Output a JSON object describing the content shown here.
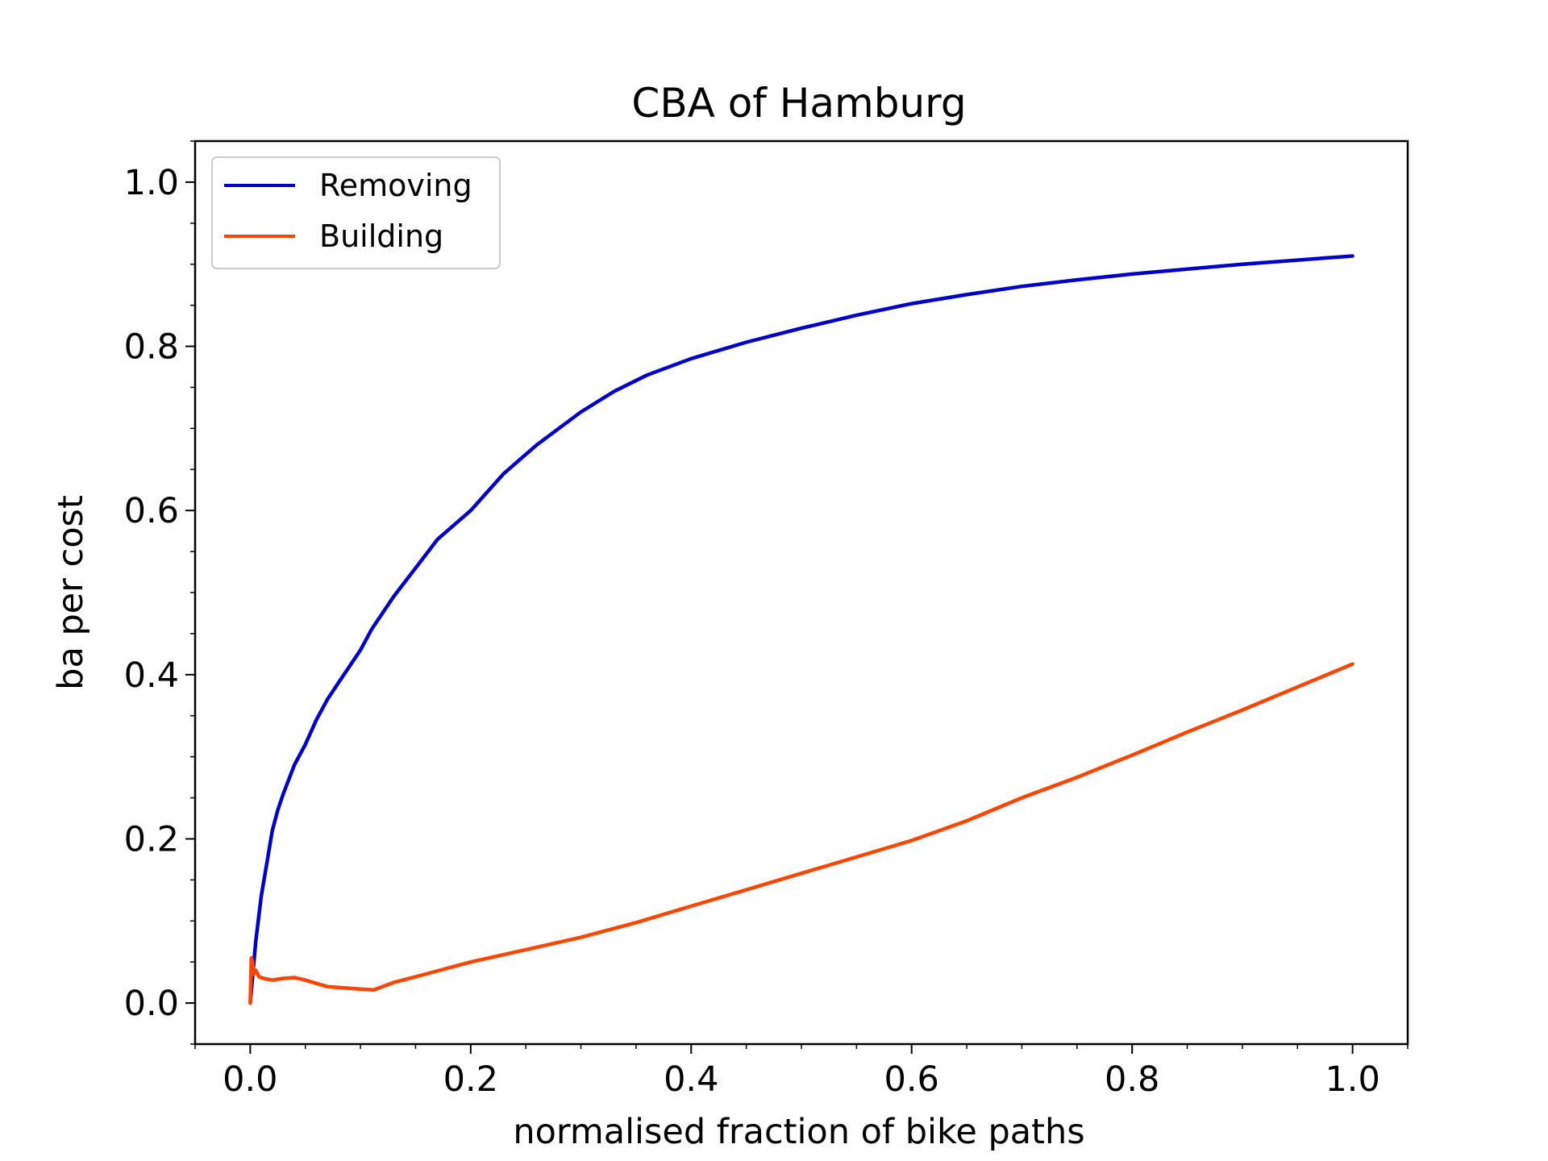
{
  "chart_data": {
    "type": "line",
    "title": "CBA of Hamburg",
    "xlabel": "normalised fraction of bike paths",
    "ylabel": "ba per cost",
    "xlim": [
      -0.05,
      1.05
    ],
    "ylim": [
      -0.05,
      1.05
    ],
    "xticks": [
      0.0,
      0.2,
      0.4,
      0.6,
      0.8,
      1.0
    ],
    "xtick_labels": [
      "0.0",
      "0.2",
      "0.4",
      "0.6",
      "0.8",
      "1.0"
    ],
    "yticks": [
      0.0,
      0.2,
      0.4,
      0.6,
      0.8,
      1.0
    ],
    "ytick_labels": [
      "0.0",
      "0.2",
      "0.4",
      "0.6",
      "0.8",
      "1.0"
    ],
    "grid": false,
    "legend_position": "upper-left",
    "series": [
      {
        "name": "Removing",
        "color": "#0000cc",
        "x": [
          0.0,
          0.002,
          0.005,
          0.01,
          0.015,
          0.02,
          0.025,
          0.03,
          0.04,
          0.05,
          0.06,
          0.07,
          0.08,
          0.09,
          0.1,
          0.11,
          0.12,
          0.13,
          0.15,
          0.17,
          0.2,
          0.23,
          0.26,
          0.3,
          0.33,
          0.36,
          0.4,
          0.45,
          0.5,
          0.55,
          0.6,
          0.65,
          0.7,
          0.75,
          0.8,
          0.85,
          0.9,
          0.95,
          1.0
        ],
        "values": [
          0.0,
          0.03,
          0.075,
          0.13,
          0.17,
          0.21,
          0.235,
          0.255,
          0.29,
          0.315,
          0.345,
          0.37,
          0.39,
          0.41,
          0.43,
          0.455,
          0.475,
          0.495,
          0.53,
          0.565,
          0.6,
          0.645,
          0.68,
          0.72,
          0.745,
          0.765,
          0.785,
          0.805,
          0.822,
          0.838,
          0.852,
          0.863,
          0.873,
          0.881,
          0.888,
          0.894,
          0.9,
          0.905,
          0.91
        ]
      },
      {
        "name": "Building",
        "color": "#ff4500",
        "x": [
          0.0,
          0.001,
          0.002,
          0.003,
          0.005,
          0.008,
          0.012,
          0.02,
          0.03,
          0.04,
          0.05,
          0.06,
          0.07,
          0.08,
          0.1,
          0.112,
          0.13,
          0.15,
          0.2,
          0.25,
          0.3,
          0.35,
          0.4,
          0.45,
          0.5,
          0.55,
          0.6,
          0.65,
          0.7,
          0.75,
          0.8,
          0.85,
          0.9,
          0.95,
          1.0
        ],
        "values": [
          0.0,
          0.055,
          0.05,
          0.035,
          0.04,
          0.032,
          0.03,
          0.028,
          0.03,
          0.031,
          0.028,
          0.024,
          0.02,
          0.019,
          0.017,
          0.016,
          0.025,
          0.032,
          0.05,
          0.065,
          0.08,
          0.098,
          0.118,
          0.138,
          0.158,
          0.178,
          0.198,
          0.222,
          0.25,
          0.275,
          0.302,
          0.33,
          0.357,
          0.385,
          0.413
        ]
      }
    ]
  }
}
